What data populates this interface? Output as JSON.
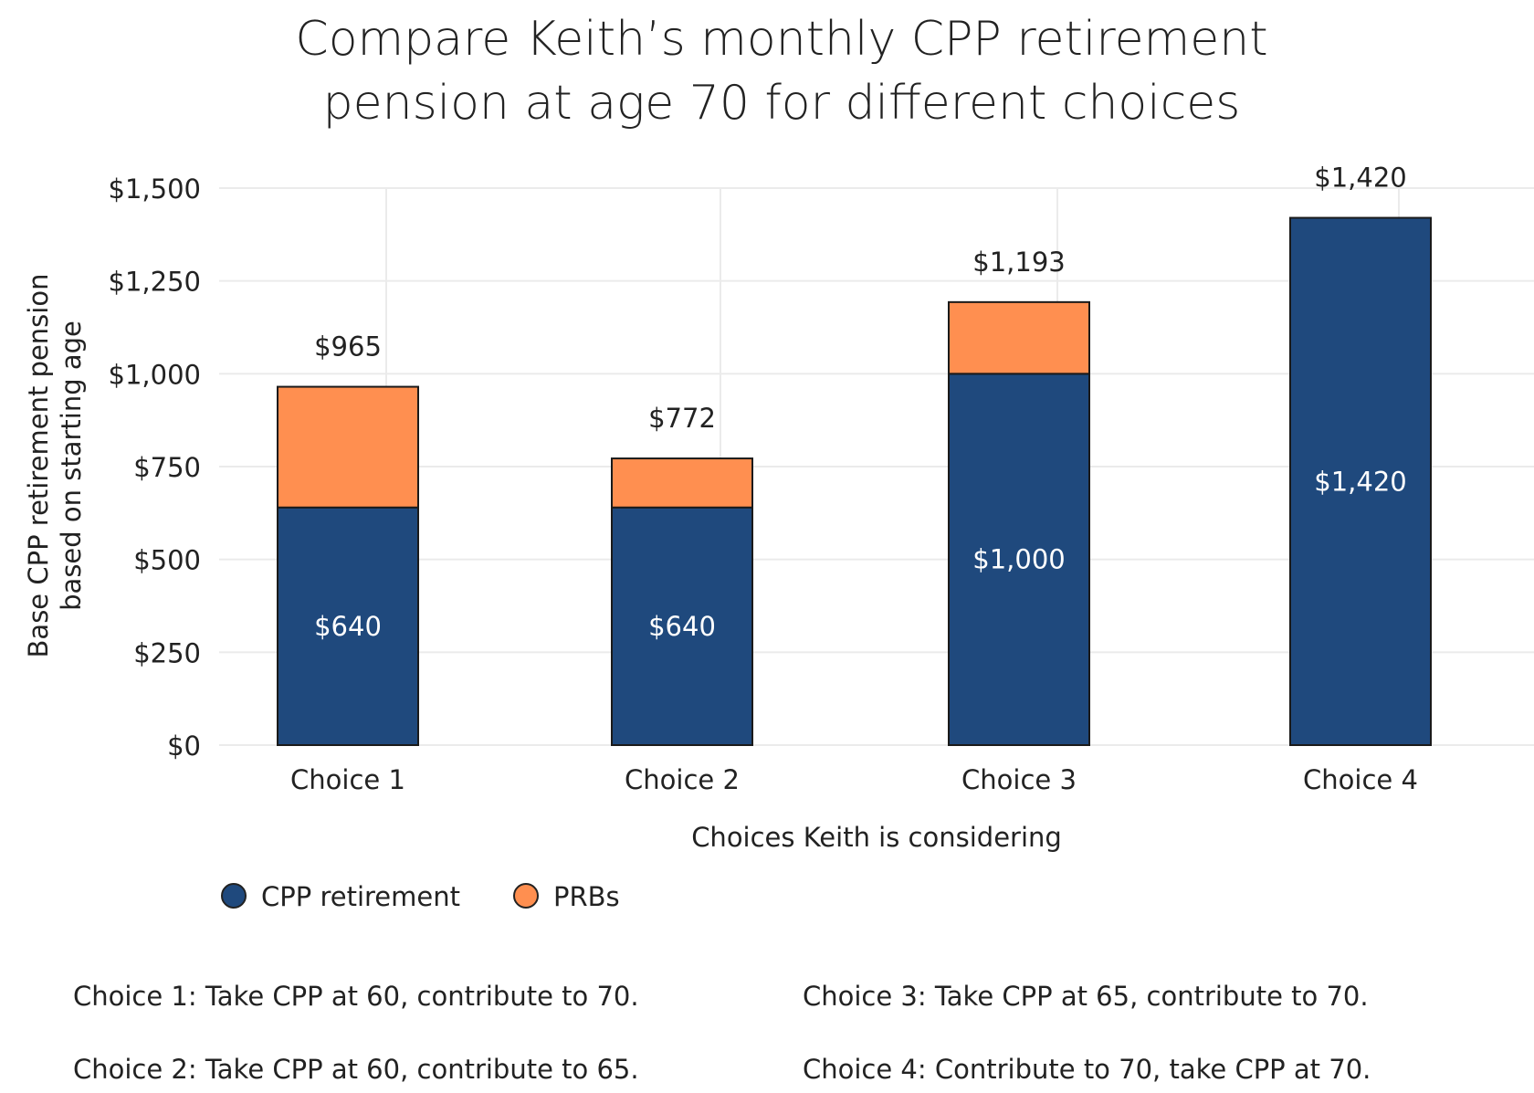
{
  "chart_data": {
    "type": "bar",
    "stacked": true,
    "title_lines": [
      "Compare Keith’s monthly CPP retirement",
      "pension at age 70 for different choices"
    ],
    "xlabel": "Choices Keith is considering",
    "ylabel_lines": [
      "Base CPP retirement pension",
      "based on starting age"
    ],
    "categories": [
      "Choice 1",
      "Choice 2",
      "Choice 3",
      "Choice 4"
    ],
    "ylim": [
      0,
      1500
    ],
    "yticks": [
      0,
      250,
      500,
      750,
      1000,
      1250,
      1500
    ],
    "ytick_labels": [
      "$0",
      "$250",
      "$500",
      "$750",
      "$1,000",
      "$1,250",
      "$1,500"
    ],
    "grid": true,
    "legend_position": "bottom-left",
    "series": [
      {
        "name": "CPP retirement",
        "color": "#1f497d",
        "values": [
          640,
          640,
          1000,
          1420
        ],
        "labels": [
          "$640",
          "$640",
          "$1,000",
          "$1,420"
        ]
      },
      {
        "name": "PRBs",
        "color": "#ff8f50",
        "values": [
          325,
          132,
          193,
          0
        ],
        "labels": [
          "",
          "",
          "",
          ""
        ]
      }
    ],
    "totals": [
      965,
      772,
      1193,
      1420
    ],
    "total_labels": [
      "$965",
      "$772",
      "$1,193",
      "$1,420"
    ]
  },
  "notes": [
    "Choice 1: Take CPP at 60, contribute to 70.",
    "Choice 3: Take CPP at 65, contribute to 70.",
    "Choice 2: Take CPP at 60, contribute to 65.",
    "Choice 4: Contribute to 70, take CPP at 70."
  ]
}
